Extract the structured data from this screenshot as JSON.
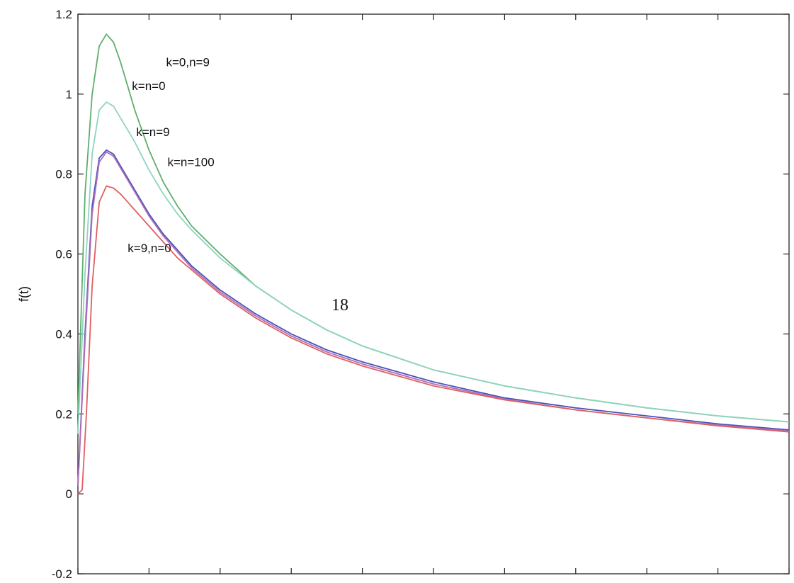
{
  "page_number": "18",
  "chart_data": {
    "type": "line",
    "title": "",
    "xlabel": "",
    "ylabel": "f(t)",
    "xlim": [
      0,
      5
    ],
    "ylim": [
      -0.2,
      1.2
    ],
    "yticks": [
      -0.2,
      0,
      0.2,
      0.4,
      0.6,
      0.8,
      1,
      1.2
    ],
    "ytick_labels": [
      "-0.2",
      "0",
      "0.2",
      "0.4",
      "0.6",
      "0.8",
      "1",
      "1.2"
    ],
    "xticks": [
      0,
      0.5,
      1,
      1.5,
      2,
      2.5,
      3,
      3.5,
      4,
      4.5,
      5
    ],
    "grid": false,
    "series": [
      {
        "name": "k=0,n=9",
        "color": "#5fae6e",
        "x": [
          0,
          0.05,
          0.1,
          0.15,
          0.2,
          0.25,
          0.3,
          0.35,
          0.4,
          0.5,
          0.6,
          0.7,
          0.8,
          1.0,
          1.25,
          1.5,
          1.75,
          2.0,
          2.5,
          3.0,
          3.5,
          4.0,
          4.5,
          5.0
        ],
        "y": [
          0.2,
          0.75,
          1.0,
          1.12,
          1.15,
          1.13,
          1.08,
          1.02,
          0.96,
          0.86,
          0.78,
          0.72,
          0.67,
          0.6,
          0.52,
          0.46,
          0.41,
          0.37,
          0.31,
          0.27,
          0.24,
          0.215,
          0.195,
          0.18
        ]
      },
      {
        "name": "k=n=0",
        "color": "#8fd4c0",
        "x": [
          0,
          0.05,
          0.1,
          0.15,
          0.2,
          0.25,
          0.3,
          0.35,
          0.4,
          0.5,
          0.6,
          0.7,
          0.8,
          1.0,
          1.25,
          1.5,
          1.75,
          2.0,
          2.5,
          3.0,
          3.5,
          4.0,
          4.5,
          5.0
        ],
        "y": [
          0.15,
          0.55,
          0.85,
          0.96,
          0.98,
          0.97,
          0.94,
          0.91,
          0.88,
          0.81,
          0.75,
          0.7,
          0.66,
          0.59,
          0.52,
          0.46,
          0.41,
          0.37,
          0.31,
          0.27,
          0.24,
          0.215,
          0.195,
          0.18
        ]
      },
      {
        "name": "k=n=9",
        "color": "#4a52b8",
        "x": [
          0,
          0.05,
          0.1,
          0.15,
          0.2,
          0.25,
          0.3,
          0.35,
          0.4,
          0.5,
          0.6,
          0.7,
          0.8,
          1.0,
          1.25,
          1.5,
          1.75,
          2.0,
          2.5,
          3.0,
          3.5,
          4.0,
          4.5,
          5.0
        ],
        "y": [
          0.02,
          0.4,
          0.72,
          0.84,
          0.86,
          0.85,
          0.82,
          0.79,
          0.76,
          0.7,
          0.65,
          0.61,
          0.57,
          0.51,
          0.45,
          0.4,
          0.36,
          0.33,
          0.28,
          0.24,
          0.215,
          0.195,
          0.175,
          0.16
        ]
      },
      {
        "name": "k=n=100",
        "color": "#b070b8",
        "x": [
          0,
          0.05,
          0.1,
          0.15,
          0.2,
          0.25,
          0.3,
          0.35,
          0.4,
          0.5,
          0.6,
          0.7,
          0.8,
          1.0,
          1.25,
          1.5,
          1.75,
          2.0,
          2.5,
          3.0,
          3.5,
          4.0,
          4.5,
          5.0
        ],
        "y": [
          0.02,
          0.38,
          0.7,
          0.83,
          0.855,
          0.845,
          0.815,
          0.785,
          0.755,
          0.695,
          0.645,
          0.605,
          0.565,
          0.505,
          0.445,
          0.395,
          0.355,
          0.325,
          0.275,
          0.237,
          0.21,
          0.19,
          0.172,
          0.157
        ]
      },
      {
        "name": "k=9,n=0",
        "color": "#e06060",
        "x": [
          0,
          0.03,
          0.06,
          0.1,
          0.15,
          0.2,
          0.25,
          0.3,
          0.35,
          0.4,
          0.5,
          0.6,
          0.7,
          0.8,
          1.0,
          1.25,
          1.5,
          1.75,
          2.0,
          2.5,
          3.0,
          3.5,
          4.0,
          4.5,
          5.0
        ],
        "y": [
          0.0,
          0.01,
          0.2,
          0.52,
          0.73,
          0.77,
          0.765,
          0.75,
          0.73,
          0.71,
          0.67,
          0.63,
          0.59,
          0.56,
          0.5,
          0.44,
          0.39,
          0.35,
          0.32,
          0.27,
          0.235,
          0.21,
          0.19,
          0.17,
          0.155
        ]
      }
    ],
    "annotations": [
      {
        "text": "k=0,n=9",
        "x": 0.62,
        "y": 1.07
      },
      {
        "text": "k=n=0",
        "x": 0.38,
        "y": 1.01
      },
      {
        "text": "k=n=9",
        "x": 0.41,
        "y": 0.895
      },
      {
        "text": "k=n=100",
        "x": 0.63,
        "y": 0.82
      },
      {
        "text": "k=9,n=0",
        "x": 0.35,
        "y": 0.605
      }
    ]
  }
}
